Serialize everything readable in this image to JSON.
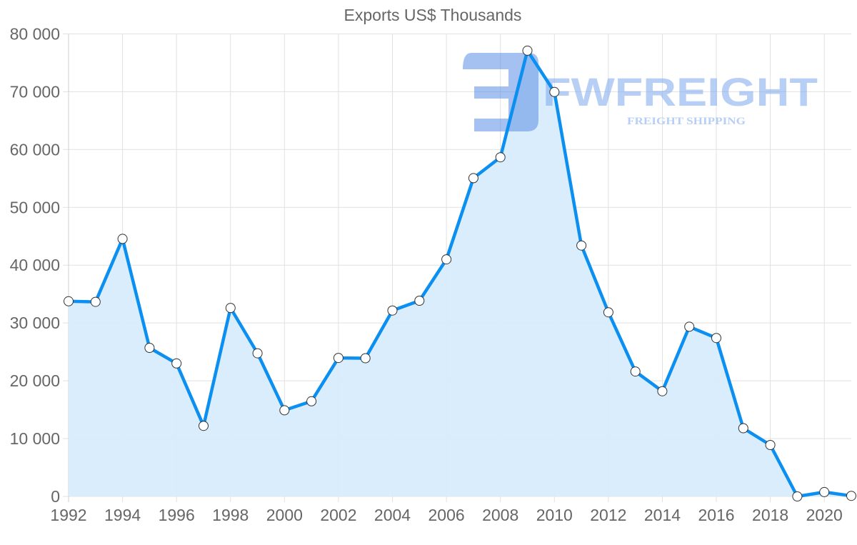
{
  "chart_data": {
    "type": "area",
    "title": "Exports US$ Thousands",
    "xlabel": "",
    "ylabel": "",
    "x": [
      1992,
      1993,
      1994,
      1995,
      1996,
      1997,
      1998,
      1999,
      2000,
      2001,
      2002,
      2003,
      2004,
      2005,
      2006,
      2007,
      2008,
      2009,
      2010,
      2011,
      2012,
      2013,
      2014,
      2015,
      2016,
      2017,
      2018,
      2019,
      2020,
      2021
    ],
    "series": [
      {
        "name": "Exports US$ Thousands",
        "values": [
          33750,
          33650,
          44550,
          25700,
          23000,
          12200,
          32600,
          24750,
          14900,
          16450,
          23950,
          23900,
          32150,
          33850,
          41000,
          55050,
          58650,
          77100,
          69950,
          43400,
          31850,
          21600,
          18200,
          29350,
          27400,
          11800,
          8900,
          0,
          750,
          100
        ]
      }
    ],
    "ylim": [
      0,
      80000
    ],
    "xlim": [
      1992,
      2021
    ],
    "y_ticks": [
      "0",
      "10 000",
      "20 000",
      "30 000",
      "40 000",
      "50 000",
      "60 000",
      "70 000",
      "80 000"
    ],
    "y_tick_values": [
      0,
      10000,
      20000,
      30000,
      40000,
      50000,
      60000,
      70000,
      80000
    ],
    "x_ticks": [
      "1992",
      "1994",
      "1996",
      "1998",
      "2000",
      "2002",
      "2004",
      "2006",
      "2008",
      "2010",
      "2012",
      "2014",
      "2016",
      "2018",
      "2020"
    ],
    "x_tick_values": [
      1992,
      1994,
      1996,
      1998,
      2000,
      2002,
      2004,
      2006,
      2008,
      2010,
      2012,
      2014,
      2016,
      2018,
      2020
    ],
    "grid": true,
    "legend": "none",
    "colors": {
      "line": "#0b8ff0",
      "fill": "#d7ecfc",
      "point_fill": "#ffffff",
      "point_stroke": "#333333",
      "grid": "#e1e1e1",
      "axis_text": "#666666"
    }
  },
  "watermark": {
    "brand": "FWFREIGHT",
    "tagline": "FREIGHT SHIPPING",
    "color": "#7da7ec"
  }
}
